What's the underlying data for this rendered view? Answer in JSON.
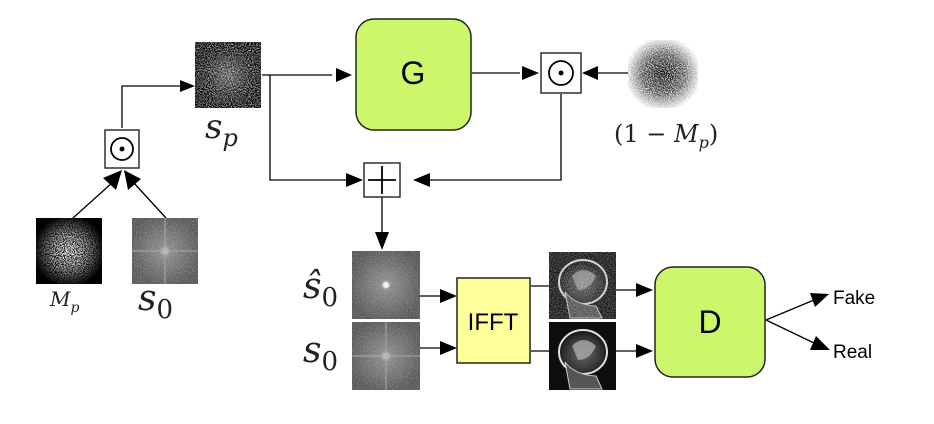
{
  "nodes": {
    "mask": {
      "label": "M_p"
    },
    "s0_input": {
      "label": "s_0"
    },
    "sp": {
      "label": "s_p"
    },
    "inv_mask": {
      "label": "(1 − M_p)"
    },
    "generator": {
      "label": "G"
    },
    "ifft": {
      "label": "IFFT"
    },
    "discriminator": {
      "label": "D"
    },
    "s0_hat_spec": {
      "label": "ŝ_0"
    },
    "s0_spec": {
      "label": "s_0"
    },
    "fake_output": {
      "label": "Fake"
    },
    "real_output": {
      "label": "Real"
    },
    "hadamard_op": {
      "symbol": "⊙"
    },
    "add_op": {
      "symbol": "+"
    }
  },
  "colors": {
    "generator_fill": "#ccf76b",
    "discriminator_fill": "#ccf76b",
    "ifft_fill": "#ffff99",
    "line": "#000000"
  }
}
